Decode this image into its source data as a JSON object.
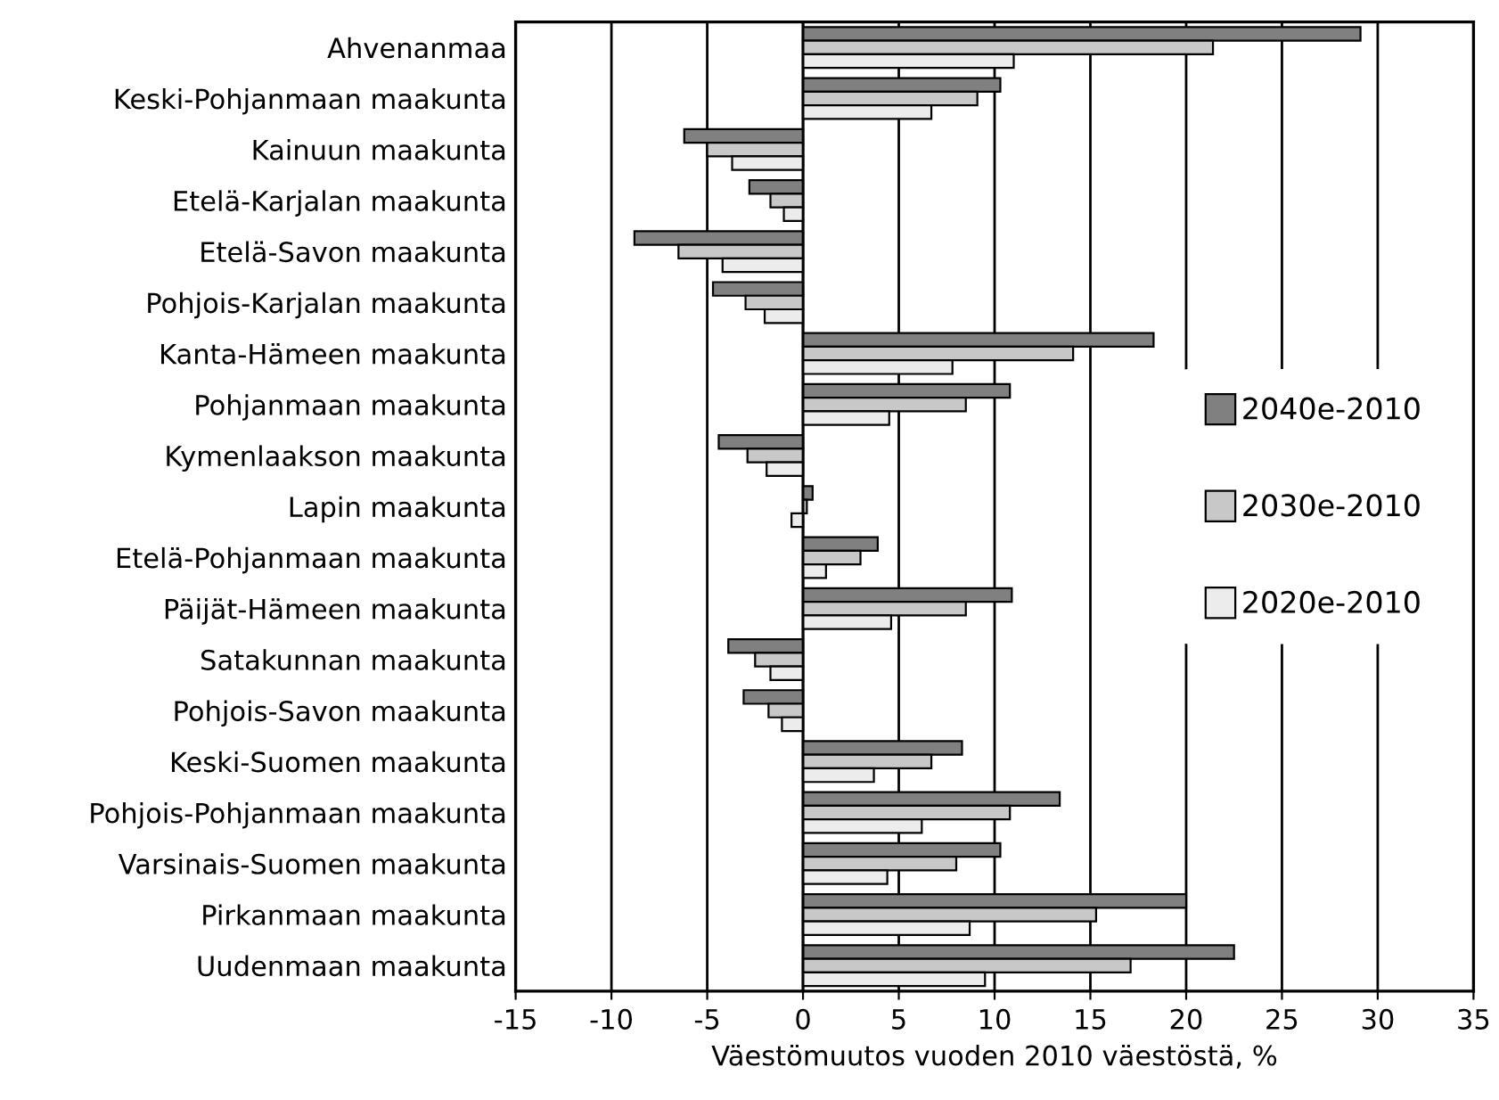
{
  "chart_data": {
    "type": "bar",
    "orientation": "horizontal",
    "xlabel": "Väestömuutos vuoden 2010 väestöstä, %",
    "categories": [
      "Ahvenanmaa",
      "Keski-Pohjanmaan maakunta",
      "Kainuun maakunta",
      "Etelä-Karjalan maakunta",
      "Etelä-Savon maakunta",
      "Pohjois-Karjalan maakunta",
      "Kanta-Hämeen maakunta",
      "Pohjanmaan maakunta",
      "Kymenlaakson maakunta",
      "Lapin maakunta",
      "Etelä-Pohjanmaan maakunta",
      "Päijät-Hämeen maakunta",
      "Satakunnan maakunta",
      "Pohjois-Savon maakunta",
      "Keski-Suomen maakunta",
      "Pohjois-Pohjanmaan maakunta",
      "Varsinais-Suomen maakunta",
      "Pirkanmaan maakunta",
      "Uudenmaan maakunta"
    ],
    "series": [
      {
        "name": "2040e-2010",
        "color": "#808080",
        "values": [
          29.1,
          10.3,
          -6.2,
          -2.8,
          -8.8,
          -4.7,
          18.3,
          10.8,
          -4.4,
          0.5,
          3.9,
          10.9,
          -3.9,
          -3.1,
          8.3,
          13.4,
          10.3,
          20.0,
          22.5
        ]
      },
      {
        "name": "2030e-2010",
        "color": "#c8c8c8",
        "values": [
          21.4,
          9.1,
          -5.0,
          -1.7,
          -6.5,
          -3.0,
          14.1,
          8.5,
          -2.9,
          0.2,
          3.0,
          8.5,
          -2.5,
          -1.8,
          6.7,
          10.8,
          8.0,
          15.3,
          17.1
        ]
      },
      {
        "name": "2020e-2010",
        "color": "#ececec",
        "values": [
          11.0,
          6.7,
          -3.7,
          -1.0,
          -4.2,
          -2.0,
          7.8,
          4.5,
          -1.9,
          -0.6,
          1.2,
          4.6,
          -1.7,
          -1.1,
          3.7,
          6.2,
          4.4,
          8.7,
          9.5
        ]
      }
    ],
    "xlim": [
      -15,
      35
    ],
    "xticks": [
      -15,
      -10,
      -5,
      0,
      5,
      10,
      15,
      20,
      25,
      30,
      35
    ],
    "grid": "x",
    "legend": "right"
  }
}
